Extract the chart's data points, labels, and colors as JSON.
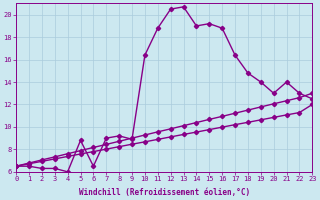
{
  "xlabel": "Windchill (Refroidissement éolien,°C)",
  "bg_color": "#cce8f0",
  "grid_color": "#aaccdd",
  "line_color": "#880088",
  "x_min": 0,
  "x_max": 23,
  "y_min": 6,
  "y_max": 21,
  "yticks": [
    6,
    8,
    10,
    12,
    14,
    16,
    18,
    20
  ],
  "xticks": [
    0,
    1,
    2,
    3,
    4,
    5,
    6,
    7,
    8,
    9,
    10,
    11,
    12,
    13,
    14,
    15,
    16,
    17,
    18,
    19,
    20,
    21,
    22,
    23
  ],
  "curve1_x": [
    0,
    1,
    2,
    3,
    4,
    5,
    6,
    7,
    8,
    9,
    10,
    11,
    12,
    13,
    14,
    15,
    16,
    17,
    18,
    19,
    20,
    21,
    22,
    23
  ],
  "curve1_y": [
    6.5,
    6.5,
    6.3,
    6.3,
    6.0,
    8.8,
    6.5,
    9.0,
    9.2,
    8.9,
    16.4,
    18.8,
    20.5,
    20.7,
    19.0,
    19.2,
    18.8,
    16.4,
    14.8,
    14.0,
    13.0,
    14.0,
    13.0,
    12.5
  ],
  "line2_x": [
    0,
    1,
    2,
    3,
    4,
    5,
    6,
    7,
    8,
    9,
    10,
    11,
    12,
    13,
    14,
    15,
    16,
    17,
    18,
    19,
    20,
    21,
    22,
    23
  ],
  "line2_y": [
    6.5,
    6.78,
    7.06,
    7.33,
    7.61,
    7.89,
    8.17,
    8.44,
    8.72,
    9.0,
    9.28,
    9.56,
    9.83,
    10.11,
    10.39,
    10.67,
    10.94,
    11.22,
    11.5,
    11.78,
    12.06,
    12.33,
    12.61,
    13.0
  ],
  "line3_x": [
    0,
    1,
    2,
    3,
    4,
    5,
    6,
    7,
    8,
    9,
    10,
    11,
    12,
    13,
    14,
    15,
    16,
    17,
    18,
    19,
    20,
    21,
    22,
    23
  ],
  "line3_y": [
    6.5,
    6.72,
    6.93,
    7.15,
    7.37,
    7.59,
    7.8,
    8.02,
    8.24,
    8.46,
    8.67,
    8.89,
    9.11,
    9.33,
    9.54,
    9.76,
    9.98,
    10.2,
    10.41,
    10.63,
    10.85,
    11.07,
    11.28,
    12.0
  ],
  "marker": "D",
  "marker_size": 2.2,
  "linewidth": 1.0,
  "tick_fontsize": 5.0,
  "label_fontsize": 5.5
}
